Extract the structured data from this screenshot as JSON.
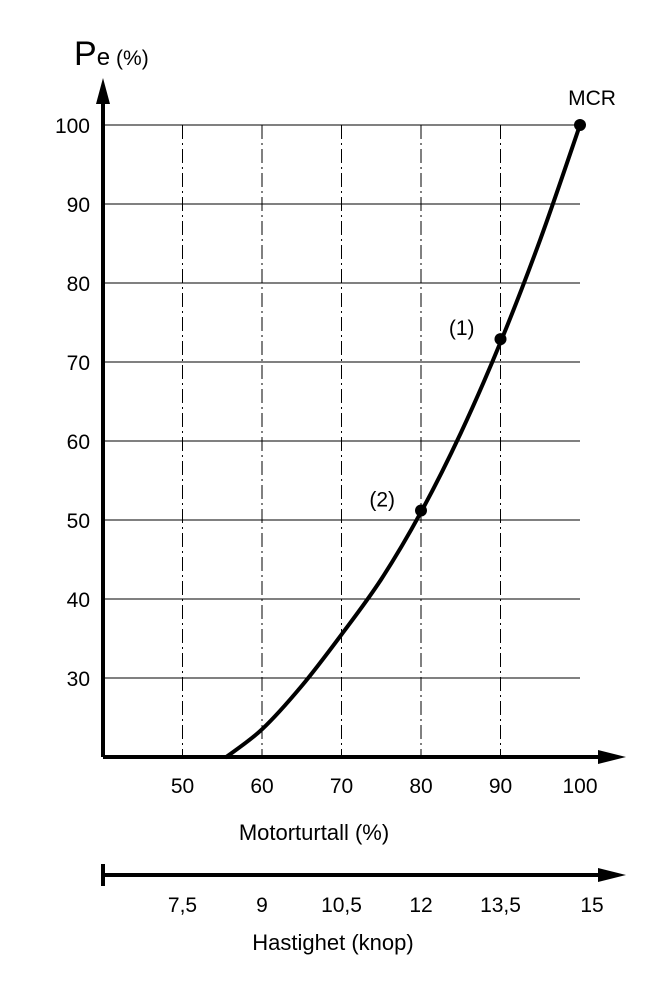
{
  "chart_data": {
    "type": "line",
    "ylabel_main": "P",
    "ylabel_sub": "e",
    "ylabel_unit": "(%)",
    "xlabel": "Motorturtall  (%)",
    "x2label": "Hastighet (knop)",
    "xlim": [
      40,
      100
    ],
    "ylim": [
      20,
      100
    ],
    "x_ticks": [
      50,
      60,
      70,
      80,
      90,
      100
    ],
    "y_ticks": [
      30,
      40,
      50,
      60,
      70,
      80,
      90,
      100
    ],
    "x2_ticks": [
      {
        "x": 50,
        "label": "7,5"
      },
      {
        "x": 60,
        "label": "9"
      },
      {
        "x": 70,
        "label": "10,5"
      },
      {
        "x": 80,
        "label": "12"
      },
      {
        "x": 90,
        "label": "13,5"
      },
      {
        "x": 100,
        "label": "15"
      }
    ],
    "series": [
      {
        "x": [
          55.5,
          60,
          65,
          70,
          75,
          80,
          85,
          90,
          95,
          100
        ],
        "y": [
          20,
          23.5,
          29,
          35.5,
          42.5,
          51,
          61,
          72.5,
          85.5,
          100
        ]
      }
    ],
    "points": [
      {
        "x": 80,
        "y": 51.2,
        "label": "(2)"
      },
      {
        "x": 90,
        "y": 72.9,
        "label": "(1)"
      },
      {
        "x": 100,
        "y": 100,
        "label": "MCR"
      }
    ],
    "grid": true,
    "color": "#000000"
  }
}
